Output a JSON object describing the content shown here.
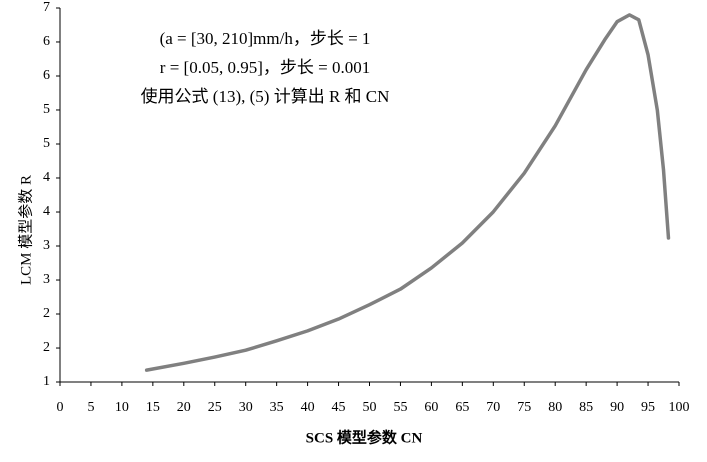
{
  "chart_data": {
    "type": "line",
    "xlabel": "SCS 模型参数 CN",
    "ylabel": "LCM 模型参数 R",
    "annotations": [
      "(a = [30, 210]mm/h，步长 = 1",
      "r = [0.05, 0.95]，步长 = 0.001",
      "使用公式 (13), (5) 计算出 R 和 CN"
    ],
    "xlim": [
      0,
      100
    ],
    "xticks": [
      0,
      5,
      10,
      15,
      20,
      25,
      30,
      35,
      40,
      45,
      50,
      55,
      60,
      65,
      70,
      75,
      80,
      85,
      90,
      95,
      100
    ],
    "ylim": [
      1,
      7
    ],
    "yticks": [
      1,
      {
        "value": 1.545,
        "label": "2"
      },
      {
        "value": 2.091,
        "label": "2"
      },
      {
        "value": 2.636,
        "label": "3"
      },
      {
        "value": 3.182,
        "label": "3"
      },
      {
        "value": 3.727,
        "label": "4"
      },
      {
        "value": 4.273,
        "label": "4"
      },
      {
        "value": 4.818,
        "label": "5"
      },
      {
        "value": 5.364,
        "label": "5"
      },
      {
        "value": 5.909,
        "label": "6"
      },
      {
        "value": 6.455,
        "label": "6"
      },
      7
    ],
    "grid": false,
    "series": [
      {
        "color": "#808080",
        "x": [
          14,
          20,
          25,
          30,
          35,
          40,
          45,
          50,
          55,
          60,
          65,
          70,
          75,
          80,
          85,
          88,
          90,
          92,
          93.5,
          95,
          96.5,
          97.5,
          98.3
        ],
        "values": [
          1.19,
          1.3,
          1.4,
          1.51,
          1.66,
          1.82,
          2.01,
          2.24,
          2.49,
          2.83,
          3.23,
          3.73,
          4.35,
          5.11,
          6.01,
          6.49,
          6.78,
          6.89,
          6.81,
          6.25,
          5.36,
          4.4,
          3.31
        ]
      }
    ]
  }
}
